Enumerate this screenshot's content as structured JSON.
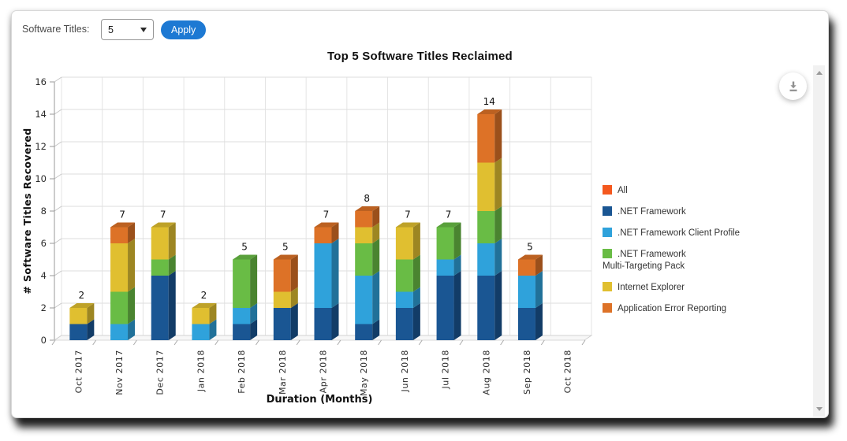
{
  "toolbar": {
    "label": "Software Titles:",
    "dropdown_value": "5",
    "apply_label": "Apply"
  },
  "icons": {
    "download": "download-icon",
    "scroll_up": "chevron-up-icon",
    "scroll_down": "chevron-down-icon",
    "dropdown_caret": "caret-down-icon"
  },
  "colors": {
    "apply_button": "#1D79D3",
    "grid_line": "#dedede",
    "axis_line": "#9a9a9a"
  },
  "chart_data": {
    "type": "bar",
    "stacked": true,
    "projection": "3d",
    "title": "Top 5 Software Titles Reclaimed",
    "xlabel": "Duration (Months)",
    "ylabel": "# Software Titles Recovered",
    "ylim": [
      0,
      16
    ],
    "yticks": [
      0,
      2,
      4,
      6,
      8,
      10,
      12,
      14,
      16
    ],
    "grid": true,
    "legend_position": "right",
    "categories": [
      "Oct 2017",
      "Nov 2017",
      "Dec 2017",
      "Jan 2018",
      "Feb 2018",
      "Mar 2018",
      "Apr 2018",
      "May 2018",
      "Jun 2018",
      "Jul 2018",
      "Aug 2018",
      "Sep 2018",
      "Oct 2018"
    ],
    "series": [
      {
        "name": ".NET Framework",
        "color": "#1A5693",
        "values": [
          1,
          0,
          4,
          0,
          1,
          2,
          2,
          1,
          2,
          4,
          4,
          2,
          0
        ]
      },
      {
        "name": ".NET Framework Client Profile",
        "color": "#2FA2DB",
        "values": [
          0,
          1,
          0,
          1,
          1,
          0,
          4,
          3,
          1,
          1,
          2,
          2,
          0
        ]
      },
      {
        "name": ".NET Framework Multi-Targeting Pack",
        "color": "#69BC45",
        "values": [
          0,
          2,
          1,
          0,
          3,
          0,
          0,
          2,
          2,
          2,
          2,
          0,
          0
        ]
      },
      {
        "name": "Internet Explorer",
        "color": "#E0BF30",
        "values": [
          1,
          3,
          2,
          1,
          0,
          1,
          0,
          1,
          2,
          0,
          3,
          0,
          0
        ]
      },
      {
        "name": "Application Error Reporting",
        "color": "#DD7227",
        "values": [
          0,
          1,
          0,
          0,
          0,
          2,
          1,
          1,
          0,
          0,
          3,
          1,
          0
        ]
      }
    ],
    "bar_total_labels": [
      "2",
      "7",
      "7",
      "2",
      "5",
      "5",
      "7",
      "8",
      "7",
      "7",
      "14",
      "5",
      ""
    ],
    "legend": [
      {
        "label": "All",
        "color": "#F4581E"
      },
      {
        "label": ".NET Framework",
        "color": "#1A5693"
      },
      {
        "label": ".NET Framework Client Profile",
        "color": "#2FA2DB"
      },
      {
        "label": ".NET Framework\nMulti-Targeting Pack",
        "color": "#69BC45"
      },
      {
        "label": "Internet Explorer",
        "color": "#E0BF30"
      },
      {
        "label": "Application Error Reporting",
        "color": "#DD7227"
      }
    ]
  }
}
